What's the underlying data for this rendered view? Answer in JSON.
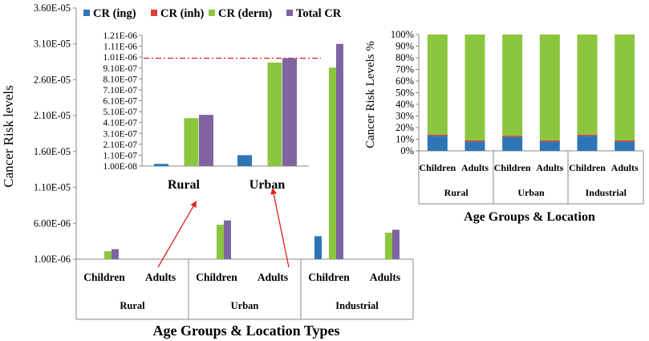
{
  "chart_data": [
    {
      "id": "main",
      "type": "bar",
      "ylabel": "Cancer Risk levels",
      "xlabel": "Age Groups & Location Types",
      "yticks": [
        "1.00E-06",
        "6.00E-06",
        "1.10E-05",
        "1.60E-05",
        "2.10E-05",
        "2.60E-05",
        "3.10E-05",
        "3.60E-05"
      ],
      "ylim": [
        1e-06,
        3.6e-05
      ],
      "categories": [
        "Children",
        "Adults",
        "Children",
        "Adults",
        "Children",
        "Adults"
      ],
      "groups": [
        "Rural",
        "Urban",
        "Industrial"
      ],
      "series": [
        {
          "name": "CR (ing)",
          "color": "#2e75b6",
          "values": [
            2e-07,
            1.2e-07,
            3.3e-07,
            1.9e-07,
            4.2e-06,
            1e-07
          ]
        },
        {
          "name": "CR (inh)",
          "color": "#e03c31",
          "values": [
            1e-10,
            1e-10,
            1e-10,
            1e-10,
            1e-10,
            1e-10
          ]
        },
        {
          "name": "CR (derm)",
          "color": "#8cc63e",
          "values": [
            2.1e-06,
            0,
            5.8e-06,
            0,
            2.77e-05,
            4.7e-06
          ]
        },
        {
          "name": "Total CR",
          "color": "#8064a2",
          "values": [
            2.4e-06,
            0,
            6.4e-06,
            0,
            3.1e-05,
            5.1e-06
          ]
        }
      ]
    },
    {
      "id": "inset",
      "type": "bar",
      "categories": [
        "Rural",
        "Urban"
      ],
      "yticks": [
        "1.21E-06",
        "1.11E-06",
        "1.01E-06",
        "9.10E-07",
        "8.10E-07",
        "7.10E-07",
        "6.10E-07",
        "5.10E-07",
        "4.10E-07",
        "3.10E-07",
        "2.10E-07",
        "1.10E-07",
        "1.00E-08"
      ],
      "ylim": [
        1e-08,
        1.21e-06
      ],
      "threshold": 1e-06,
      "series": [
        {
          "name": "CR (ing)",
          "values": [
            3e-08,
            1.1e-07
          ]
        },
        {
          "name": "CR (inh)",
          "values": [
            0,
            0
          ]
        },
        {
          "name": "CR (derm)",
          "values": [
            4.5e-07,
            9.6e-07
          ]
        },
        {
          "name": "Total CR",
          "values": [
            4.8e-07,
            1e-06
          ]
        }
      ]
    },
    {
      "id": "percent",
      "type": "bar",
      "stacked": true,
      "ylabel": "Cancer Risk Levels %",
      "xlabel": "Age Groups & Location",
      "yticks": [
        "0%",
        "10%",
        "20%",
        "30%",
        "40%",
        "50%",
        "60%",
        "70%",
        "80%",
        "90%",
        "100%"
      ],
      "ylim": [
        0,
        100
      ],
      "categories": [
        "Children",
        "Adults",
        "Children",
        "Adults",
        "Children",
        "Adults"
      ],
      "groups": [
        "Rural",
        "Urban",
        "Industrial"
      ],
      "series": [
        {
          "name": "CR (ing)",
          "values": [
            13,
            8,
            12,
            8,
            13,
            8
          ]
        },
        {
          "name": "CR (inh)",
          "values": [
            1,
            1,
            1,
            1,
            1,
            1
          ]
        },
        {
          "name": "CR (derm)",
          "values": [
            86,
            91,
            87,
            91,
            86,
            91
          ]
        }
      ]
    }
  ]
}
